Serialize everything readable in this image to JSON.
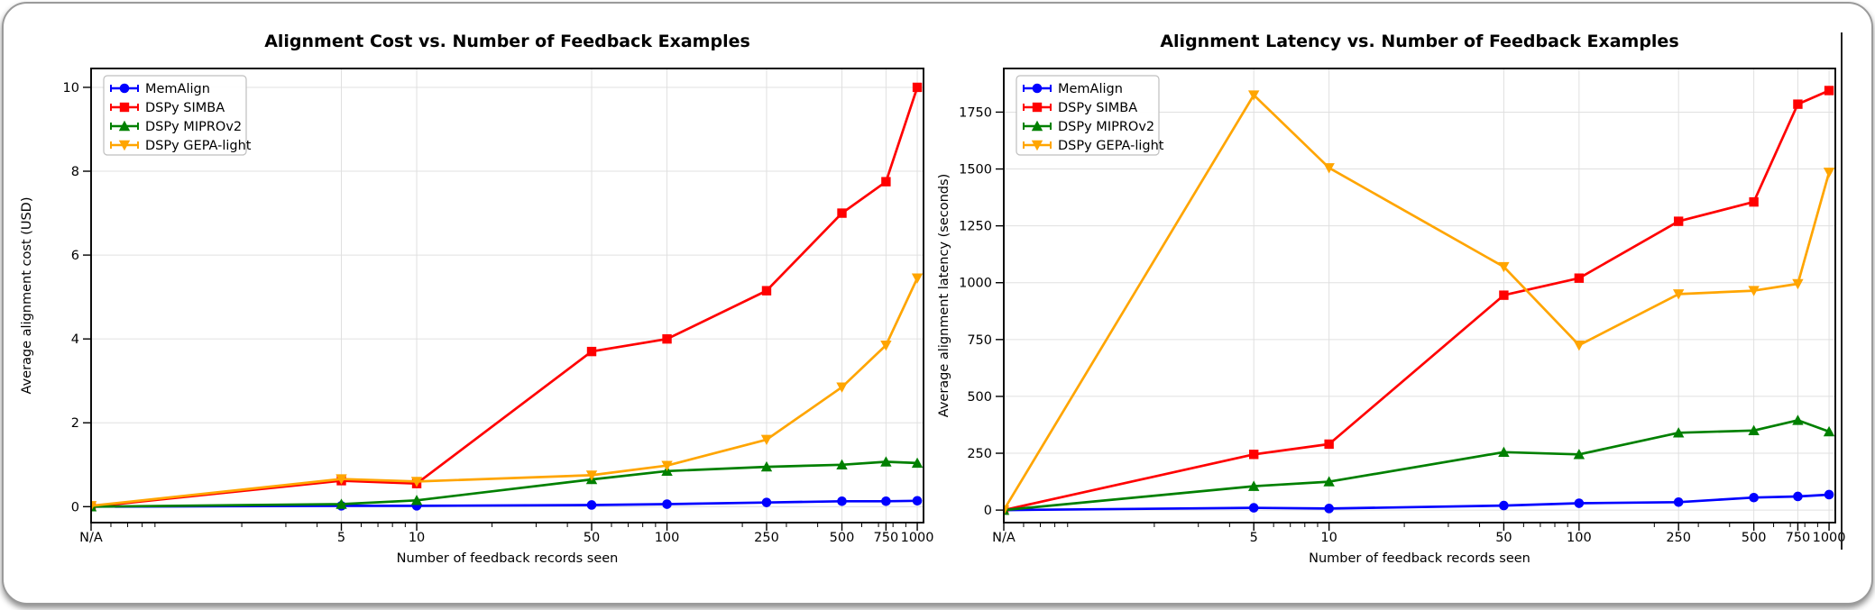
{
  "figure": {
    "kind": "dual line chart comparison"
  },
  "chart_data": [
    {
      "type": "line",
      "title": "Alignment Cost vs. Number of Feedback Examples",
      "xlabel": "Number of feedback records seen",
      "ylabel": "Average alignment cost (USD)",
      "x_scale": "log",
      "x_tick_labels": [
        "N/A",
        "5",
        "10",
        "50",
        "100",
        "250",
        "500",
        "750",
        "1000"
      ],
      "x_values": [
        null,
        5,
        10,
        50,
        100,
        250,
        500,
        750,
        1000
      ],
      "y_ticks": [
        0,
        2,
        4,
        6,
        8,
        10
      ],
      "ylim": [
        -0.38,
        10.45
      ],
      "grid": true,
      "legend_position": "upper-left",
      "series": [
        {
          "name": "MemAlign",
          "color": "#0000ff",
          "marker": "circle",
          "values": [
            0.0,
            0.02,
            0.02,
            0.04,
            0.06,
            0.1,
            0.13,
            0.13,
            0.14
          ]
        },
        {
          "name": "DSPy SIMBA",
          "color": "#ff0000",
          "marker": "square",
          "values": [
            0.0,
            0.62,
            0.55,
            3.7,
            4.0,
            5.15,
            7.0,
            7.75,
            10.0
          ]
        },
        {
          "name": "DSPy MIPROv2",
          "color": "#008000",
          "marker": "triangle-up",
          "values": [
            0.0,
            0.06,
            0.15,
            0.65,
            0.85,
            0.95,
            1.0,
            1.07,
            1.04
          ]
        },
        {
          "name": "DSPy GEPA-light",
          "color": "#ffa500",
          "marker": "triangle-down",
          "values": [
            0.02,
            0.66,
            0.6,
            0.75,
            0.98,
            1.6,
            2.85,
            3.85,
            5.45
          ]
        }
      ]
    },
    {
      "type": "line",
      "title": "Alignment Latency vs. Number of Feedback Examples",
      "xlabel": "Number of feedback records seen",
      "ylabel": "Average alignment latency (seconds)",
      "x_scale": "log",
      "x_tick_labels": [
        "N/A",
        "5",
        "10",
        "50",
        "100",
        "250",
        "500",
        "750",
        "1000"
      ],
      "x_values": [
        null,
        5,
        10,
        50,
        100,
        250,
        500,
        750,
        1000
      ],
      "y_ticks": [
        0,
        250,
        500,
        750,
        1000,
        1250,
        1500,
        1750
      ],
      "ylim": [
        -55,
        1942
      ],
      "grid": true,
      "legend_position": "upper-left",
      "series": [
        {
          "name": "MemAlign",
          "color": "#0000ff",
          "marker": "circle",
          "values": [
            0,
            10,
            7,
            20,
            30,
            35,
            55,
            60,
            68
          ]
        },
        {
          "name": "DSPy SIMBA",
          "color": "#ff0000",
          "marker": "square",
          "values": [
            0,
            245,
            290,
            945,
            1020,
            1270,
            1355,
            1785,
            1845
          ]
        },
        {
          "name": "DSPy MIPROv2",
          "color": "#008000",
          "marker": "triangle-up",
          "values": [
            0,
            105,
            125,
            255,
            245,
            340,
            350,
            395,
            345
          ]
        },
        {
          "name": "DSPy GEPA-light",
          "color": "#ffa500",
          "marker": "triangle-down",
          "values": [
            0,
            1825,
            1505,
            1070,
            725,
            950,
            965,
            995,
            1485
          ]
        }
      ]
    }
  ]
}
